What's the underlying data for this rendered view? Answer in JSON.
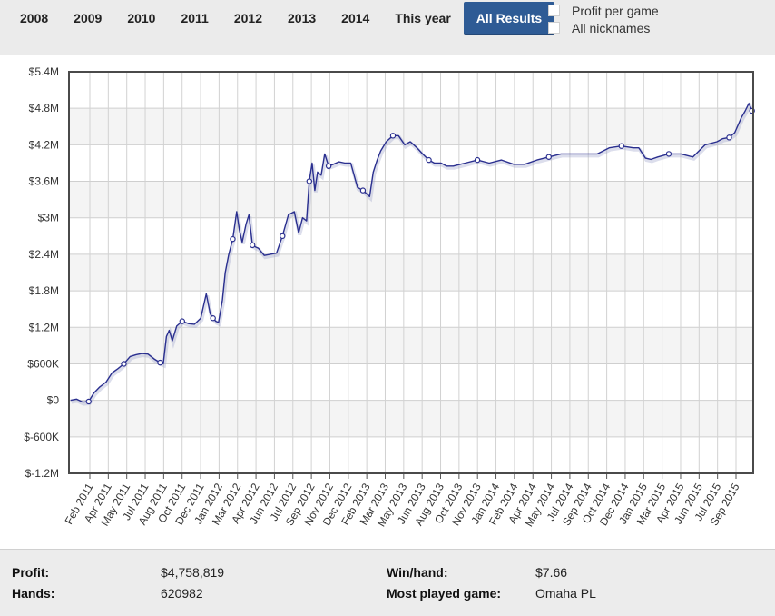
{
  "tabs": [
    {
      "label": "2008"
    },
    {
      "label": "2009"
    },
    {
      "label": "2010"
    },
    {
      "label": "2011"
    },
    {
      "label": "2012"
    },
    {
      "label": "2013"
    },
    {
      "label": "2014"
    },
    {
      "label": "This year"
    },
    {
      "label": "All Results",
      "active": true
    }
  ],
  "options": {
    "profit_per_game": "Profit per game",
    "all_nicknames": "All nicknames"
  },
  "colors": {
    "line": "#2a2f8f",
    "accent": "#2e5b95"
  },
  "chart_data": {
    "type": "line",
    "title": "",
    "xlabel": "",
    "ylabel": "",
    "ylim": [
      -1200000,
      5400000
    ],
    "y_ticks": [
      -1200000,
      -600000,
      0,
      600000,
      1200000,
      1800000,
      2400000,
      3000000,
      3600000,
      4200000,
      4800000,
      5400000
    ],
    "y_tick_labels": [
      "$-1.2M",
      "$-600K",
      "$0",
      "$600K",
      "$1.2M",
      "$1.8M",
      "$2.4M",
      "$3M",
      "$3.6M",
      "$4.2M",
      "$4.8M",
      "$5.4M"
    ],
    "x_tick_labels": [
      "Feb 2011",
      "Apr 2011",
      "May 2011",
      "Jul 2011",
      "Aug 2011",
      "Oct 2011",
      "Dec 2011",
      "Jan 2012",
      "Mar 2012",
      "Apr 2012",
      "Jun 2012",
      "Jul 2012",
      "Sep 2012",
      "Nov 2012",
      "Dec 2012",
      "Feb 2013",
      "Mar 2013",
      "May 2013",
      "Jun 2013",
      "Aug 2013",
      "Oct 2013",
      "Nov 2013",
      "Jan 2014",
      "Feb 2014",
      "Apr 2014",
      "May 2014",
      "Jul 2014",
      "Sep 2014",
      "Oct 2014",
      "Dec 2014",
      "Jan 2015",
      "Mar 2015",
      "Apr 2015",
      "Jun 2015",
      "Jul 2015",
      "Sep 2015"
    ],
    "grid": true,
    "legend": "none",
    "series": [
      {
        "x": [
          "2011-01-05",
          "2011-01-20",
          "2011-02-05",
          "2011-02-20",
          "2011-03-05",
          "2011-03-20",
          "2011-04-05",
          "2011-04-20",
          "2011-05-05",
          "2011-05-20",
          "2011-06-05",
          "2011-06-20",
          "2011-07-05",
          "2011-07-20",
          "2011-08-05",
          "2011-08-20",
          "2011-08-28",
          "2011-09-05",
          "2011-09-12",
          "2011-09-20",
          "2011-10-01",
          "2011-10-15",
          "2011-11-01",
          "2011-11-15",
          "2011-12-01",
          "2011-12-15",
          "2011-12-25",
          "2012-01-01",
          "2012-01-08",
          "2012-01-15",
          "2012-01-25",
          "2012-02-01",
          "2012-02-10",
          "2012-02-20",
          "2012-03-01",
          "2012-03-08",
          "2012-03-15",
          "2012-03-25",
          "2012-04-01",
          "2012-04-10",
          "2012-04-18",
          "2012-04-25",
          "2012-05-10",
          "2012-05-25",
          "2012-06-10",
          "2012-06-25",
          "2012-07-10",
          "2012-07-25",
          "2012-08-05",
          "2012-08-15",
          "2012-08-25",
          "2012-09-01",
          "2012-09-08",
          "2012-09-15",
          "2012-09-22",
          "2012-10-01",
          "2012-10-10",
          "2012-10-20",
          "2012-11-01",
          "2012-11-15",
          "2012-12-01",
          "2012-12-15",
          "2013-01-01",
          "2013-01-15",
          "2013-02-01",
          "2013-02-10",
          "2013-02-20",
          "2013-03-01",
          "2013-03-15",
          "2013-04-01",
          "2013-04-15",
          "2013-05-01",
          "2013-05-15",
          "2013-06-01",
          "2013-06-15",
          "2013-07-01",
          "2013-07-15",
          "2013-08-01",
          "2013-08-15",
          "2013-09-01",
          "2013-10-01",
          "2013-11-01",
          "2013-12-01",
          "2014-01-01",
          "2014-02-01",
          "2014-03-01",
          "2014-04-01",
          "2014-05-01",
          "2014-06-01",
          "2014-07-01",
          "2014-08-01",
          "2014-09-01",
          "2014-10-01",
          "2014-11-01",
          "2014-12-01",
          "2014-12-15",
          "2015-01-01",
          "2015-01-15",
          "2015-02-01",
          "2015-03-01",
          "2015-04-01",
          "2015-05-01",
          "2015-06-01",
          "2015-07-01",
          "2015-07-15",
          "2015-08-01",
          "2015-08-15",
          "2015-09-01",
          "2015-09-10",
          "2015-09-20",
          "2015-09-28"
        ],
        "values": [
          0,
          20000,
          -30000,
          -20000,
          120000,
          220000,
          300000,
          450000,
          520000,
          600000,
          720000,
          750000,
          770000,
          760000,
          680000,
          620000,
          600000,
          1050000,
          1150000,
          980000,
          1220000,
          1300000,
          1260000,
          1250000,
          1350000,
          1750000,
          1420000,
          1350000,
          1300000,
          1280000,
          1650000,
          2100000,
          2400000,
          2650000,
          3100000,
          2800000,
          2600000,
          2900000,
          3050000,
          2550000,
          2520000,
          2500000,
          2380000,
          2400000,
          2420000,
          2700000,
          3050000,
          3100000,
          2750000,
          3000000,
          2950000,
          3600000,
          3900000,
          3450000,
          3750000,
          3700000,
          4050000,
          3850000,
          3880000,
          3920000,
          3900000,
          3900000,
          3500000,
          3450000,
          3350000,
          3750000,
          3950000,
          4100000,
          4250000,
          4350000,
          4350000,
          4200000,
          4250000,
          4150000,
          4050000,
          3950000,
          3900000,
          3900000,
          3850000,
          3850000,
          3900000,
          3950000,
          3900000,
          3950000,
          3880000,
          3880000,
          3950000,
          4000000,
          4050000,
          4050000,
          4050000,
          4050000,
          4150000,
          4180000,
          4150000,
          4150000,
          3980000,
          3960000,
          4000000,
          4050000,
          4050000,
          4000000,
          4200000,
          4250000,
          4300000,
          4320000,
          4400000,
          4650000,
          4750000,
          4880000,
          4758819
        ]
      }
    ]
  },
  "stats": {
    "profit_label": "Profit:",
    "profit_value": "$4,758,819",
    "hands_label": "Hands:",
    "hands_value": "620982",
    "winhand_label": "Win/hand:",
    "winhand_value": "$7.66",
    "most_played_label": "Most played game:",
    "most_played_value": "Omaha PL"
  }
}
